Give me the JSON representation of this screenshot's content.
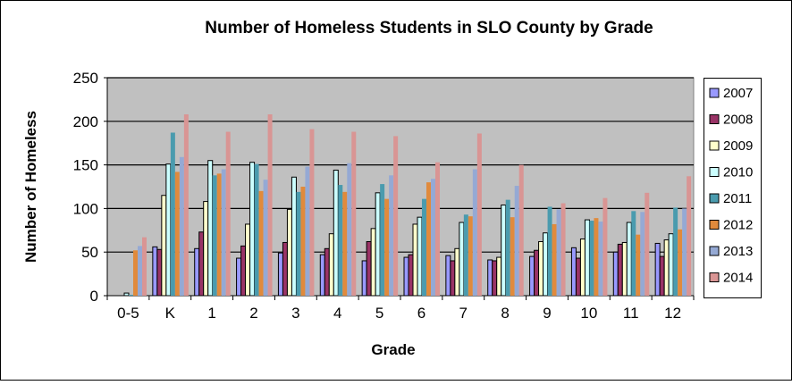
{
  "chart_data": {
    "type": "bar",
    "title": "Number of Homeless Students in SLO County by Grade",
    "xlabel": "Grade",
    "ylabel": "Number of Homeless",
    "ylim": [
      0,
      250
    ],
    "yticks": [
      0,
      50,
      100,
      150,
      200,
      250
    ],
    "grid": true,
    "legend_position": "right",
    "categories": [
      "0-5",
      "K",
      "1",
      "2",
      "3",
      "4",
      "5",
      "6",
      "7",
      "8",
      "9",
      "10",
      "11",
      "12"
    ],
    "series": [
      {
        "name": "2007",
        "color": "#9999FF",
        "outlined": true,
        "values": [
          0,
          56,
          54,
          43,
          49,
          47,
          40,
          44,
          46,
          41,
          45,
          55,
          50,
          60
        ]
      },
      {
        "name": "2008",
        "color": "#993366",
        "outlined": true,
        "values": [
          0,
          53,
          73,
          57,
          61,
          54,
          62,
          47,
          40,
          40,
          52,
          43,
          59,
          45
        ]
      },
      {
        "name": "2009",
        "color": "#FFFFCC",
        "outlined": true,
        "values": [
          0,
          115,
          108,
          82,
          99,
          71,
          77,
          82,
          54,
          44,
          62,
          65,
          61,
          64
        ]
      },
      {
        "name": "2010",
        "color": "#CCFFFF",
        "outlined": true,
        "values": [
          3,
          151,
          155,
          153,
          136,
          144,
          118,
          90,
          84,
          104,
          72,
          87,
          84,
          71
        ]
      },
      {
        "name": "2011",
        "color": "#4A9BAE",
        "outlined": false,
        "values": [
          1,
          187,
          138,
          151,
          119,
          127,
          128,
          111,
          93,
          110,
          102,
          86,
          97,
          101
        ]
      },
      {
        "name": "2012",
        "color": "#E08A3C",
        "outlined": false,
        "values": [
          52,
          142,
          140,
          120,
          125,
          119,
          111,
          130,
          91,
          90,
          82,
          89,
          70,
          76
        ]
      },
      {
        "name": "2013",
        "color": "#95A9D4",
        "outlined": false,
        "values": [
          57,
          159,
          145,
          133,
          148,
          152,
          138,
          134,
          145,
          126,
          99,
          85,
          96,
          100
        ]
      },
      {
        "name": "2014",
        "color": "#D99594",
        "outlined": false,
        "values": [
          67,
          208,
          188,
          208,
          191,
          188,
          183,
          153,
          186,
          150,
          106,
          112,
          118,
          137
        ]
      }
    ]
  }
}
